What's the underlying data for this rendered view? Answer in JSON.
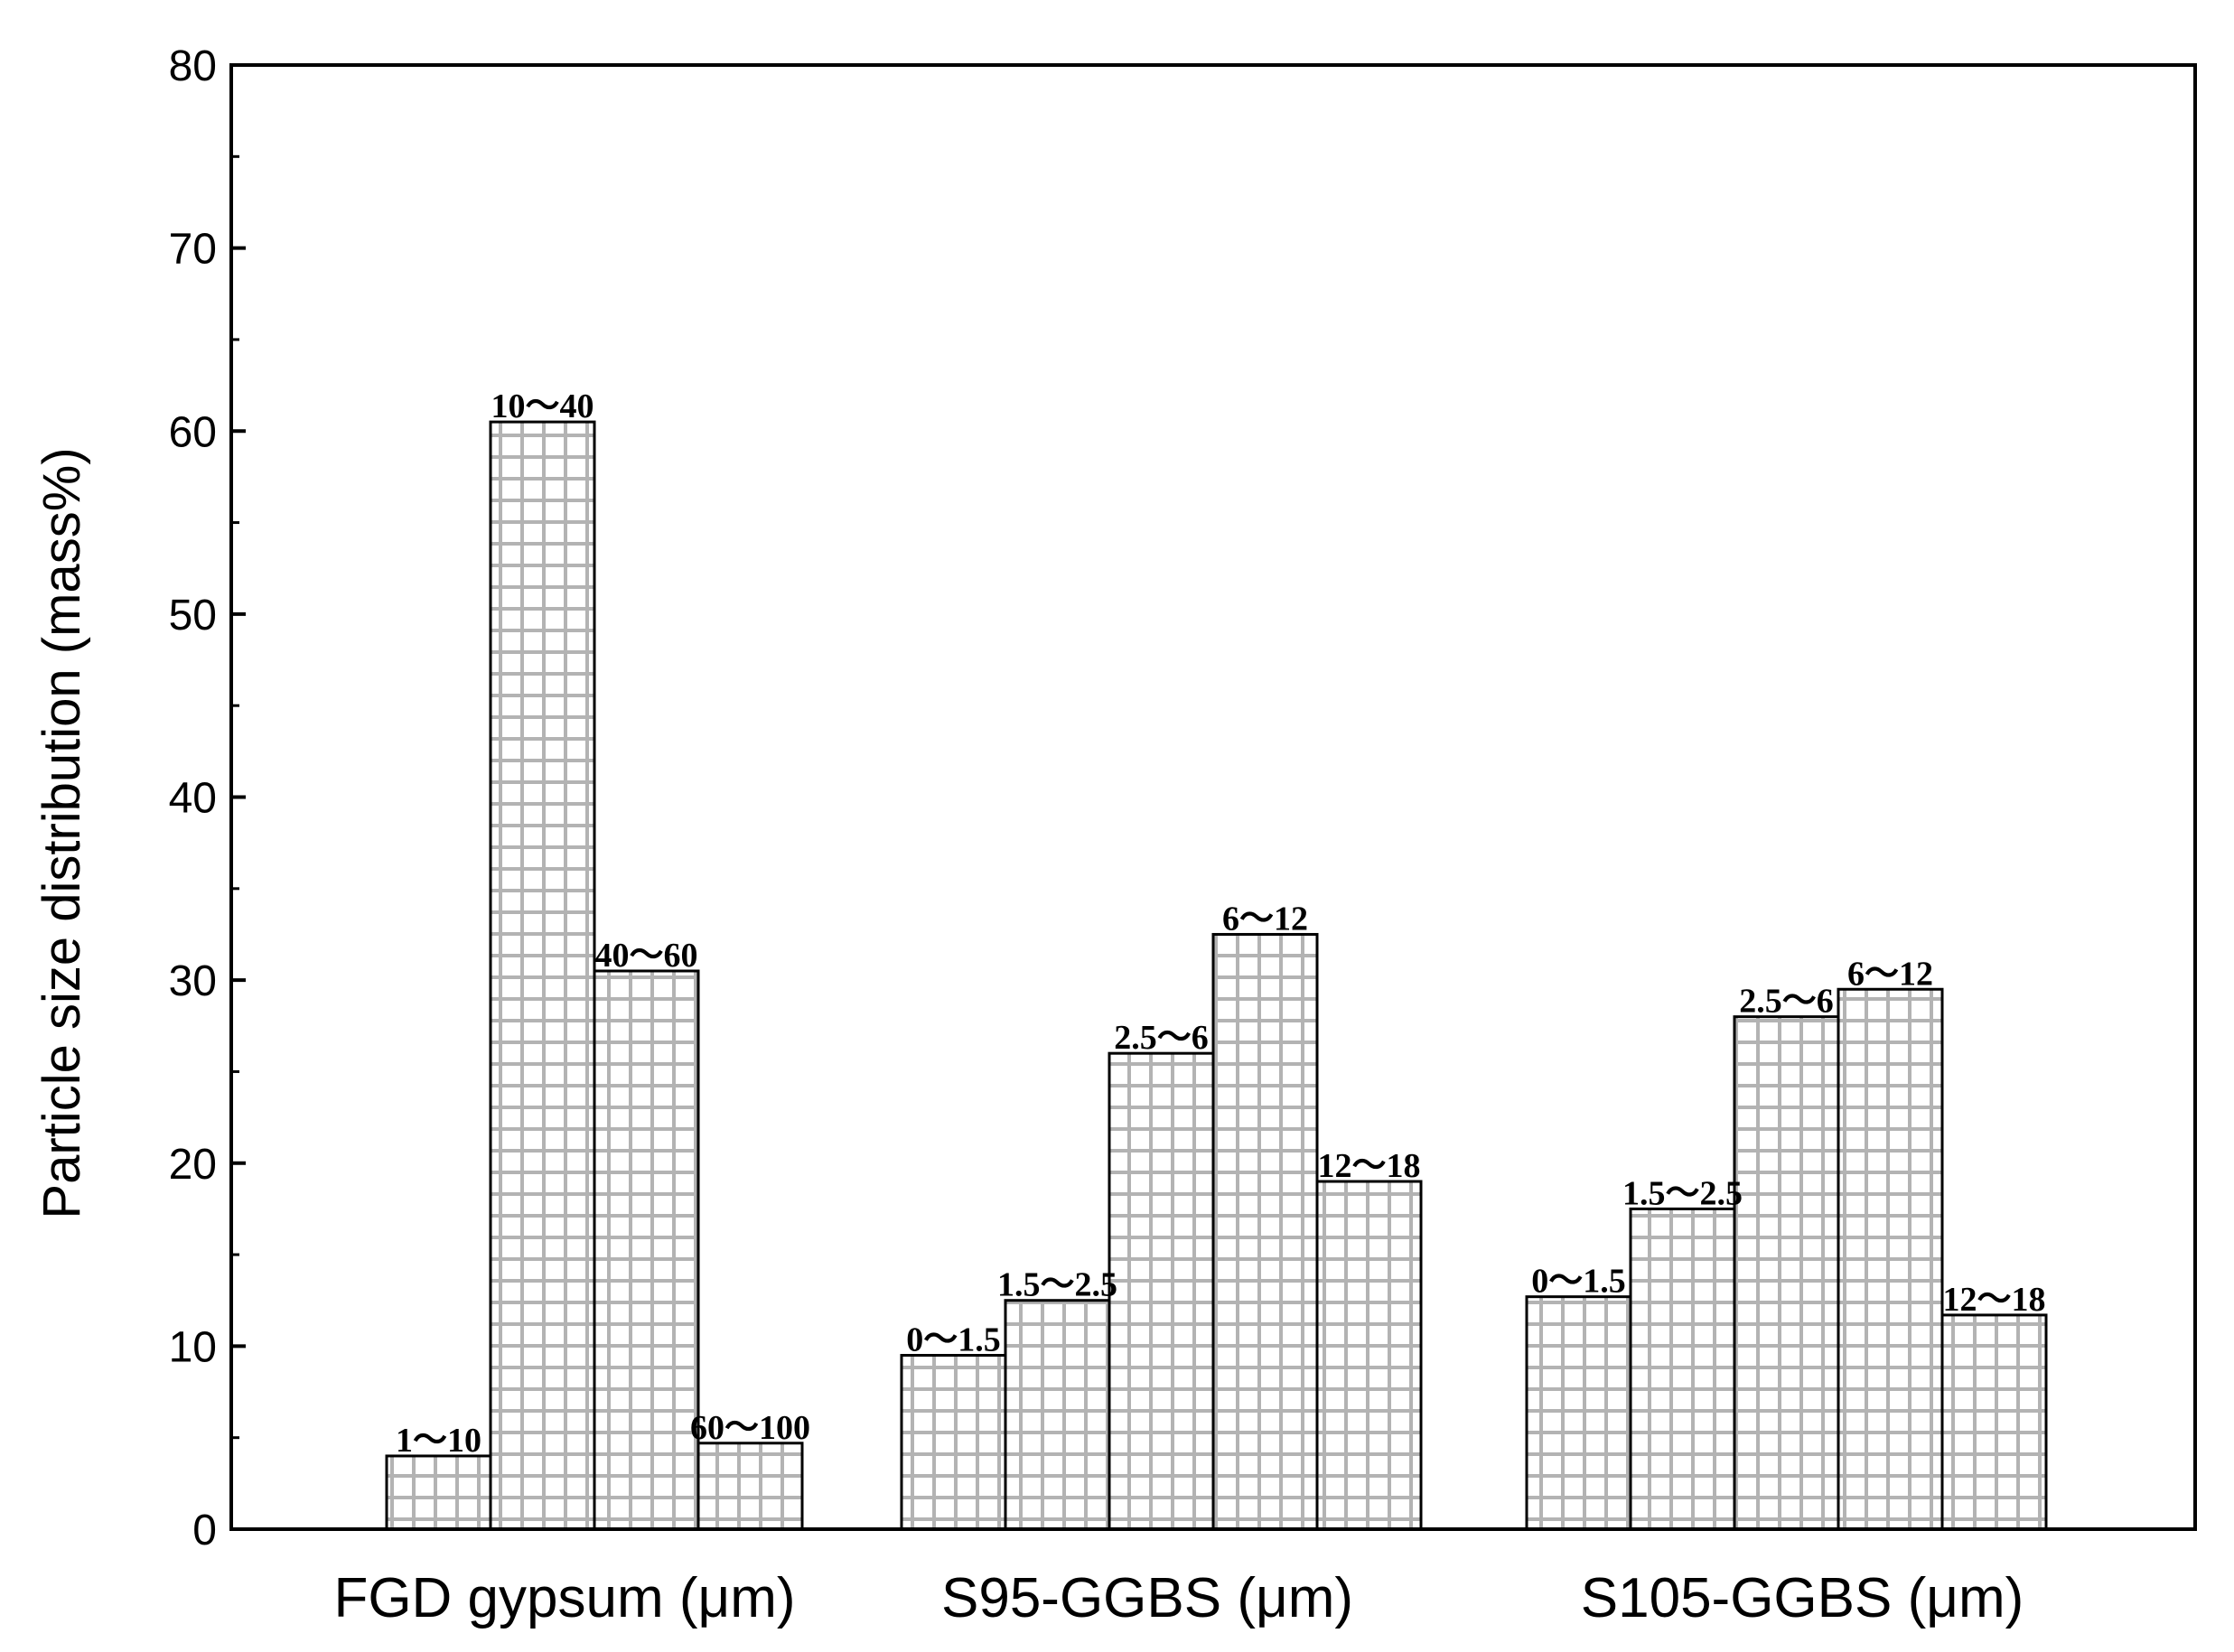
{
  "chart_data": {
    "type": "bar",
    "ylabel": "Particle size distribution (mass%)",
    "ylim": [
      0,
      80
    ],
    "yticks": [
      0,
      10,
      20,
      30,
      40,
      50,
      60,
      70,
      80
    ],
    "grid": false,
    "pattern": "grid-hatch",
    "groups": [
      {
        "name": "FGD gypsum (μm)",
        "bars": [
          {
            "label": "1～10",
            "value": 4
          },
          {
            "label": "10～40",
            "value": 60.5
          },
          {
            "label": "40～60",
            "value": 30.5
          },
          {
            "label": "60～100",
            "value": 4.7
          }
        ]
      },
      {
        "name": "S95-GGBS (μm)",
        "bars": [
          {
            "label": "0～1.5",
            "value": 9.5
          },
          {
            "label": "1.5～2.5",
            "value": 12.5
          },
          {
            "label": "2.5～6",
            "value": 26
          },
          {
            "label": "6～12",
            "value": 32.5
          },
          {
            "label": "12～18",
            "value": 19
          }
        ]
      },
      {
        "name": "S105-GGBS (μm)",
        "bars": [
          {
            "label": "0～1.5",
            "value": 12.7
          },
          {
            "label": "1.5～2.5",
            "value": 17.5
          },
          {
            "label": "2.5～6",
            "value": 28
          },
          {
            "label": "6～12",
            "value": 29.5
          },
          {
            "label": "12～18",
            "value": 11.7
          }
        ]
      }
    ],
    "colors": {
      "bar_fill": "#ffffff",
      "bar_grid": "#b3b3b3",
      "bar_outline": "#000000",
      "axis": "#000000"
    }
  }
}
